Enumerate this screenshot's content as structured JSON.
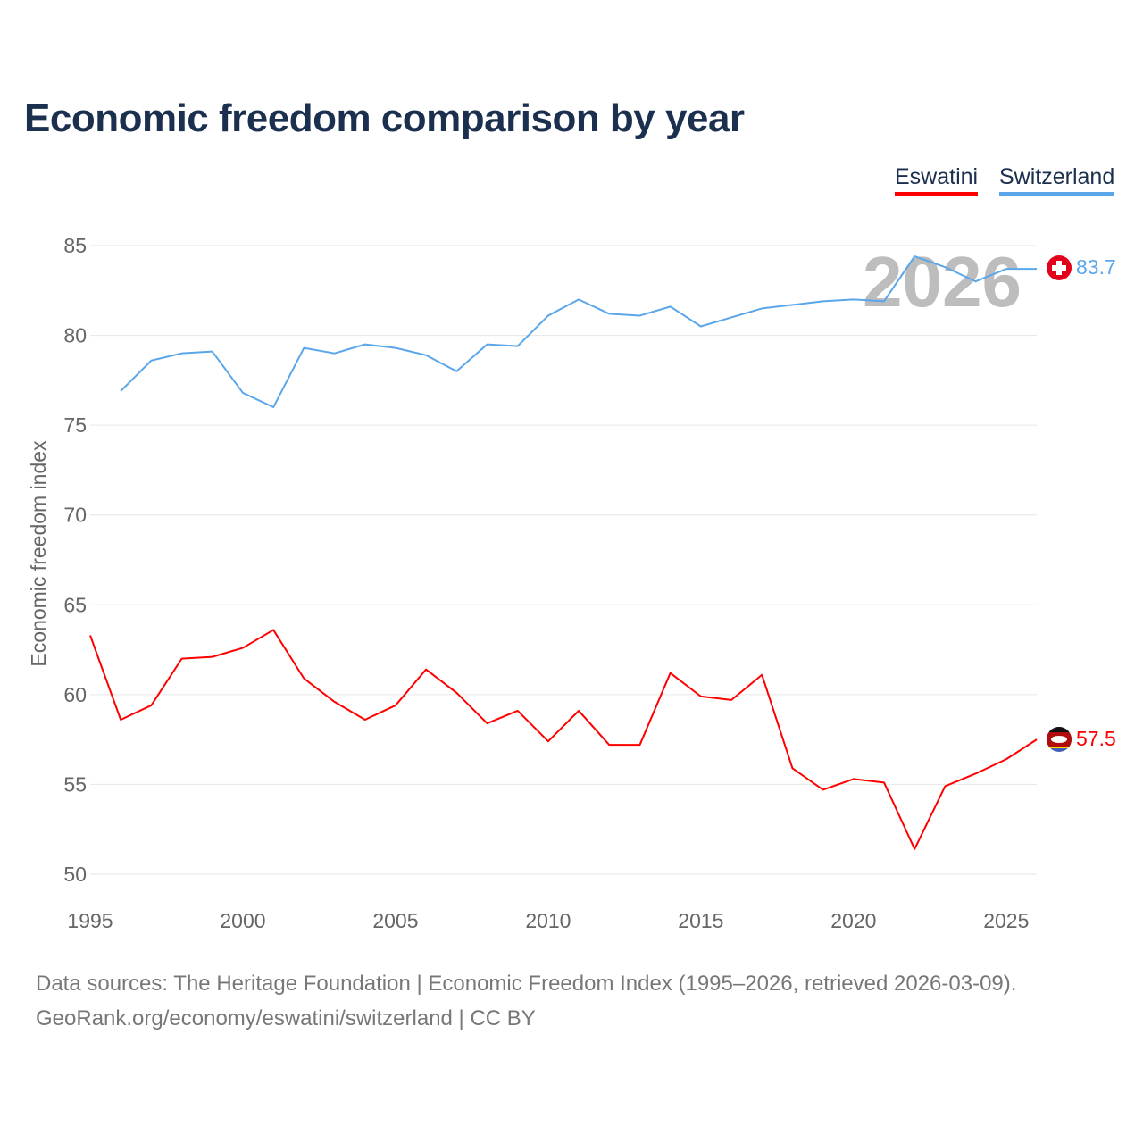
{
  "chart_data": {
    "type": "line",
    "title": "Economic freedom comparison by year",
    "xlabel": "",
    "ylabel": "Economic freedom index",
    "xlim": [
      1995,
      2026
    ],
    "ylim": [
      50,
      85
    ],
    "x_ticks": [
      1995,
      2000,
      2005,
      2010,
      2015,
      2020,
      2025
    ],
    "y_ticks": [
      50,
      55,
      60,
      65,
      70,
      75,
      80,
      85
    ],
    "grid": true,
    "legend_position": "top-right",
    "watermark_year": "2026",
    "series": [
      {
        "name": "Eswatini",
        "color": "#ff0000",
        "end_label": "57.5",
        "x": [
          1995,
          1996,
          1997,
          1998,
          1999,
          2000,
          2001,
          2002,
          2003,
          2004,
          2005,
          2006,
          2007,
          2008,
          2009,
          2010,
          2011,
          2012,
          2013,
          2014,
          2015,
          2016,
          2017,
          2018,
          2019,
          2020,
          2021,
          2022,
          2023,
          2024,
          2025,
          2026
        ],
        "values": [
          63.3,
          58.6,
          59.4,
          62.0,
          62.1,
          62.6,
          63.6,
          60.9,
          59.6,
          58.6,
          59.4,
          61.4,
          60.1,
          58.4,
          59.1,
          57.4,
          59.1,
          57.2,
          57.2,
          61.2,
          59.9,
          59.7,
          61.1,
          55.9,
          54.7,
          55.3,
          55.1,
          51.4,
          54.9,
          55.6,
          56.4,
          57.5
        ]
      },
      {
        "name": "Switzerland",
        "color": "#5aa6ea",
        "end_label": "83.7",
        "x": [
          1996,
          1997,
          1998,
          1999,
          2000,
          2001,
          2002,
          2003,
          2004,
          2005,
          2006,
          2007,
          2008,
          2009,
          2010,
          2011,
          2012,
          2013,
          2014,
          2015,
          2016,
          2017,
          2018,
          2019,
          2020,
          2021,
          2022,
          2023,
          2024,
          2025,
          2026
        ],
        "values": [
          76.9,
          78.6,
          79.0,
          79.1,
          76.8,
          76.0,
          79.3,
          79.0,
          79.5,
          79.3,
          78.9,
          78.0,
          79.5,
          79.4,
          81.1,
          82.0,
          81.2,
          81.1,
          81.6,
          80.5,
          81.0,
          81.5,
          81.7,
          81.9,
          82.0,
          81.9,
          84.4,
          83.8,
          83.0,
          83.7,
          83.7
        ]
      }
    ]
  },
  "footer": {
    "line1": "Data sources: The Heritage Foundation | Economic Freedom Index (1995–2026, retrieved 2026-03-09).",
    "line2": "GeoRank.org/economy/eswatini/switzerland | CC BY"
  }
}
